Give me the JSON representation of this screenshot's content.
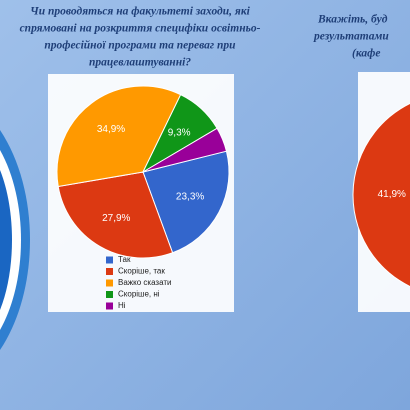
{
  "chart_data": [
    {
      "type": "pie",
      "title": [
        "Чи проводяться на факультеті заходи, які",
        "спрямовані на розкриття специфіки освітньо-",
        "професійної програми та переваг при",
        "працевлаштуванні?"
      ],
      "categories": [
        "Так",
        "Скоріше, так",
        "Важко сказати",
        "Скоріше, ні",
        "Ні"
      ],
      "values": [
        23.3,
        27.9,
        34.9,
        9.3,
        4.6
      ],
      "value_labels": [
        "23,3%",
        "27,9%",
        "34,9%",
        "9,3%",
        null
      ],
      "colors": [
        "#3366cc",
        "#dc3912",
        "#ff9900",
        "#109618",
        "#990099"
      ]
    },
    {
      "type": "pie",
      "title": [
        "Вкажіть, буд",
        "результатами",
        "(кафе"
      ],
      "values": [
        41.9
      ],
      "value_labels": [
        "41,9%"
      ],
      "colors": [
        "#dc3912"
      ]
    }
  ]
}
